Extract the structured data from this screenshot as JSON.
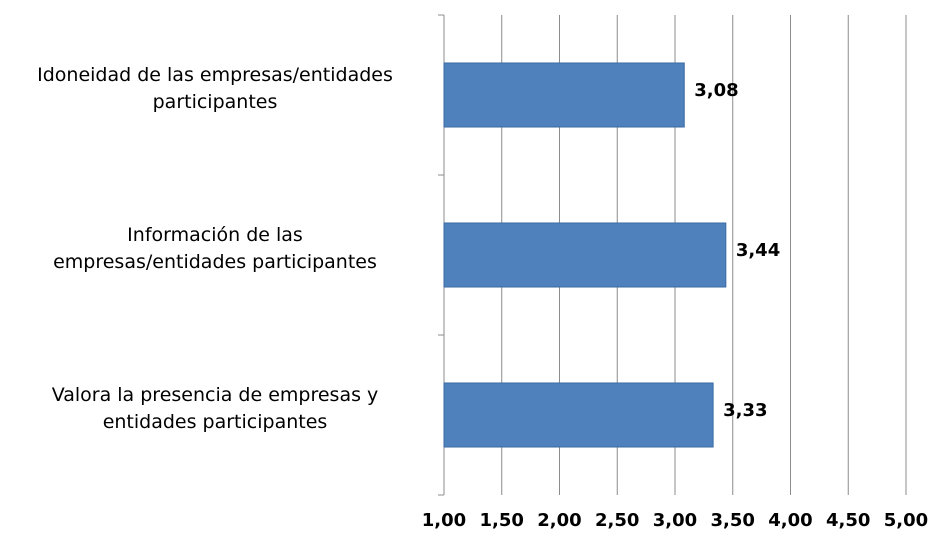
{
  "chart_data": {
    "type": "barh",
    "categories": [
      "Idoneidad de las empresas/entidades\nparticipantes",
      "Información de las\nempresas/entidades participantes",
      "Valora la presencia de empresas y\nentidades participantes"
    ],
    "values": [
      3.08,
      3.44,
      3.33
    ],
    "value_labels": [
      "3,08",
      "3,44",
      "3,33"
    ],
    "color": "#4f81bd",
    "xlim": [
      1,
      5
    ],
    "xticks": [
      {
        "value": 1,
        "label": "1,00"
      },
      {
        "value": 1.5,
        "label": "1,50"
      },
      {
        "value": 2,
        "label": "2,00"
      },
      {
        "value": 2.5,
        "label": "2,50"
      },
      {
        "value": 3,
        "label": "3,00"
      },
      {
        "value": 3.5,
        "label": "3,50"
      },
      {
        "value": 4,
        "label": "4,00"
      },
      {
        "value": 4.5,
        "label": "4,50"
      },
      {
        "value": 5,
        "label": "5,00"
      }
    ],
    "grid": true
  }
}
